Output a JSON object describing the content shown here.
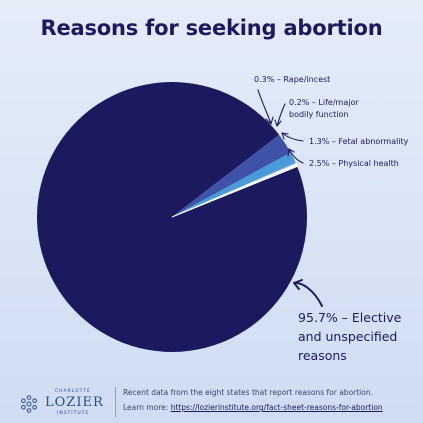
{
  "chart_data": {
    "type": "pie",
    "title": "Reasons for seeking abortion",
    "slices": [
      {
        "value": 95.7,
        "color": "#1b1a5e",
        "label_lines": [
          "95.7% – Elective",
          "and unspecified",
          "reasons"
        ]
      },
      {
        "value": 2.5,
        "color": "#3e52a8",
        "label_lines": [
          "2.5% – Physical health"
        ]
      },
      {
        "value": 1.3,
        "color": "#4a9ad8",
        "label_lines": [
          "1.3% – Fetal abnormality"
        ]
      },
      {
        "value": 0.2,
        "color": "#7fb6e8",
        "label_lines": [
          "0.2% – Life/major",
          "bodily function"
        ]
      },
      {
        "value": 0.3,
        "color": "#ffffff",
        "label_lines": [
          "0.3% – Rape/incest"
        ]
      }
    ]
  },
  "footer": {
    "logo_top": "CHARLOTTE",
    "logo_main": "LOZIER",
    "logo_bottom": "INSTITUTE",
    "line1": "Recent data from the eight states that report reasons for abortion.",
    "line2_prefix": "Learn more: ",
    "line2_link": "https://lozierinstitute.org/fact-sheet-reasons-for-abortion"
  },
  "colors": {
    "navy": "#1b1a5e",
    "background": "#dde7f6"
  }
}
